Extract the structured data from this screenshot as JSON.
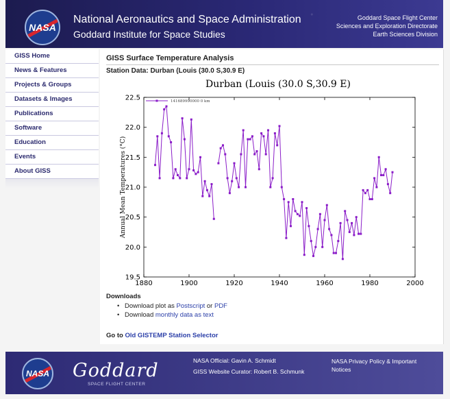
{
  "header": {
    "logo_text": "NASA",
    "title": "National Aeronautics and Space Administration",
    "subtitle": "Goddard Institute for Space Studies",
    "right_lines": [
      "Goddard Space Flight Center",
      "Sciences and Exploration Directorate",
      "Earth Sciences Division"
    ]
  },
  "nav": {
    "items": [
      "GISS Home",
      "News & Features",
      "Projects & Groups",
      "Datasets & Images",
      "Publications",
      "Software",
      "Education",
      "Events",
      "About GISS"
    ]
  },
  "main": {
    "page_title": "GISS Surface Temperature Analysis",
    "station_title": "Station Data: Durban (Louis (30.0 S,30.9 E)",
    "downloads": {
      "heading": "Downloads",
      "plot_prefix": "Download plot as ",
      "postscript": "Postscript",
      "or": " or ",
      "pdf": "PDF",
      "data_prefix": "Download ",
      "monthly": "monthly data as text"
    },
    "goto_prefix": "Go to ",
    "goto_link": "Old GISTEMP Station Selector"
  },
  "chart_data": {
    "type": "line",
    "title": "Durban (Louis (30.0 S,30.9 E)",
    "ylabel": "Annual Mean Temperatures (°C)",
    "xlabel": "",
    "legend": "141689990000 0 km",
    "xlim": [
      1880,
      2000
    ],
    "ylim": [
      19.5,
      22.5
    ],
    "xticks": [
      "1880",
      "1900",
      "1920",
      "1940",
      "1960",
      "1980",
      "2000"
    ],
    "yticks": [
      "19.5",
      "20.0",
      "20.5",
      "21.0",
      "21.5",
      "22.0",
      "22.5"
    ],
    "grid": false,
    "color": "#8a1cc8",
    "series": [
      {
        "name": "141689990000 0 km",
        "segments": [
          [
            [
              1885,
              21.37
            ],
            [
              1886,
              21.85
            ],
            [
              1887,
              21.15
            ],
            [
              1888,
              21.9
            ],
            [
              1889,
              22.3
            ],
            [
              1890,
              22.35
            ],
            [
              1891,
              21.85
            ],
            [
              1892,
              21.75
            ],
            [
              1893,
              21.15
            ],
            [
              1894,
              21.3
            ],
            [
              1895,
              21.2
            ],
            [
              1896,
              21.15
            ],
            [
              1897,
              22.15
            ],
            [
              1898,
              21.8
            ],
            [
              1899,
              21.15
            ],
            [
              1900,
              21.3
            ],
            [
              1901,
              22.13
            ],
            [
              1902,
              21.28
            ],
            [
              1903,
              21.22
            ],
            [
              1904,
              21.25
            ],
            [
              1905,
              21.5
            ],
            [
              1906,
              20.85
            ],
            [
              1907,
              21.1
            ],
            [
              1908,
              20.95
            ],
            [
              1909,
              20.85
            ],
            [
              1910,
              21.05
            ],
            [
              1911,
              20.47
            ]
          ],
          [
            [
              1913,
              21.4
            ],
            [
              1914,
              21.65
            ],
            [
              1915,
              21.7
            ],
            [
              1916,
              21.55
            ],
            [
              1917,
              21.15
            ],
            [
              1918,
              20.9
            ],
            [
              1919,
              21.1
            ],
            [
              1920,
              21.4
            ],
            [
              1921,
              21.15
            ],
            [
              1922,
              21.0
            ],
            [
              1923,
              21.55
            ],
            [
              1924,
              21.95
            ],
            [
              1925,
              21.0
            ],
            [
              1926,
              21.8
            ],
            [
              1927,
              21.8
            ],
            [
              1928,
              21.85
            ],
            [
              1929,
              21.55
            ],
            [
              1930,
              21.6
            ],
            [
              1931,
              21.3
            ],
            [
              1932,
              21.9
            ],
            [
              1933,
              21.85
            ],
            [
              1934,
              21.55
            ],
            [
              1935,
              21.95
            ],
            [
              1936,
              21.0
            ],
            [
              1937,
              21.15
            ],
            [
              1938,
              21.9
            ],
            [
              1939,
              21.7
            ],
            [
              1940,
              22.02
            ],
            [
              1941,
              21.0
            ],
            [
              1942,
              20.8
            ],
            [
              1943,
              20.15
            ],
            [
              1944,
              20.75
            ],
            [
              1945,
              20.35
            ],
            [
              1946,
              20.8
            ],
            [
              1947,
              20.6
            ],
            [
              1948,
              20.55
            ],
            [
              1949,
              20.52
            ],
            [
              1950,
              20.75
            ],
            [
              1951,
              19.87
            ],
            [
              1952,
              20.65
            ],
            [
              1953,
              20.35
            ],
            [
              1954,
              20.1
            ],
            [
              1955,
              19.85
            ],
            [
              1956,
              20.0
            ],
            [
              1957,
              20.3
            ],
            [
              1958,
              20.55
            ],
            [
              1959,
              20.0
            ],
            [
              1960,
              20.45
            ],
            [
              1961,
              20.7
            ],
            [
              1962,
              20.3
            ],
            [
              1963,
              20.2
            ],
            [
              1964,
              19.9
            ],
            [
              1965,
              19.9
            ],
            [
              1966,
              20.1
            ],
            [
              1967,
              20.4
            ],
            [
              1968,
              19.8
            ],
            [
              1969,
              20.6
            ],
            [
              1970,
              20.45
            ],
            [
              1971,
              20.25
            ],
            [
              1972,
              20.4
            ],
            [
              1973,
              20.2
            ],
            [
              1974,
              20.5
            ],
            [
              1975,
              20.22
            ],
            [
              1976,
              20.22
            ],
            [
              1977,
              20.95
            ],
            [
              1978,
              20.9
            ],
            [
              1979,
              20.95
            ],
            [
              1980,
              20.8
            ],
            [
              1981,
              20.8
            ],
            [
              1982,
              21.15
            ],
            [
              1983,
              21.0
            ],
            [
              1984,
              21.5
            ],
            [
              1985,
              21.2
            ],
            [
              1986,
              21.2
            ],
            [
              1987,
              21.3
            ],
            [
              1988,
              21.05
            ],
            [
              1989,
              20.9
            ],
            [
              1990,
              21.25
            ]
          ]
        ]
      }
    ]
  },
  "footer": {
    "logo_text": "NASA",
    "goddard_word": "Goddard",
    "goddard_sub": "SPACE FLIGHT CENTER",
    "official": "NASA Official: Gavin A. Schmidt",
    "curator": "GISS Website Curator: Robert B. Schmunk",
    "privacy": "NASA Privacy Policy & Important Notices"
  }
}
